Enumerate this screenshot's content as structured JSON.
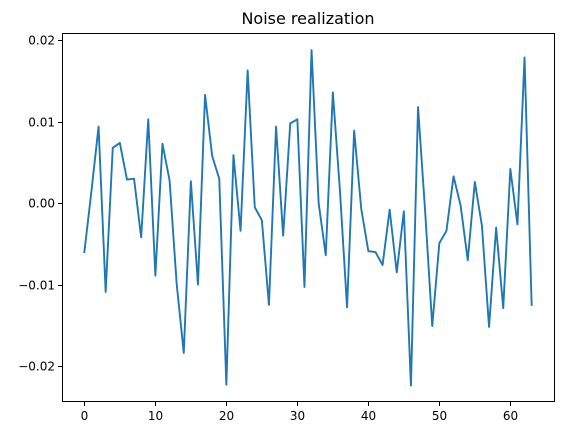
{
  "chart_data": {
    "type": "line",
    "title": "Noise realization",
    "xlabel": "",
    "ylabel": "",
    "xlim": [
      -3.15,
      66.15
    ],
    "ylim": [
      -0.0243,
      0.0209
    ],
    "xticks": [
      0,
      10,
      20,
      30,
      40,
      50,
      60
    ],
    "xtick_labels": [
      "0",
      "10",
      "20",
      "30",
      "40",
      "50",
      "60"
    ],
    "yticks": [
      -0.02,
      -0.01,
      0.0,
      0.01,
      0.02
    ],
    "ytick_labels": [
      "−0.02",
      "−0.01",
      "0.00",
      "0.01",
      "0.02"
    ],
    "grid": false,
    "legend": "none",
    "line_color": "#1f77b4",
    "x": [
      0,
      1,
      2,
      3,
      4,
      5,
      6,
      7,
      8,
      9,
      10,
      11,
      12,
      13,
      14,
      15,
      16,
      17,
      18,
      19,
      20,
      21,
      22,
      23,
      24,
      25,
      26,
      27,
      28,
      29,
      30,
      31,
      32,
      33,
      34,
      35,
      36,
      37,
      38,
      39,
      40,
      41,
      42,
      43,
      44,
      45,
      46,
      47,
      48,
      49,
      50,
      51,
      52,
      53,
      54,
      55,
      56,
      57,
      58,
      59,
      60,
      61,
      62,
      63
    ],
    "series": [
      {
        "values": [
          -0.006,
          0.0015,
          0.0094,
          -0.0109,
          0.0068,
          0.0074,
          0.0029,
          0.003,
          -0.0042,
          0.0103,
          -0.0089,
          0.0073,
          0.0028,
          -0.0099,
          -0.0184,
          0.0027,
          -0.01,
          0.0133,
          0.0058,
          0.003,
          -0.0223,
          0.0059,
          -0.0034,
          0.0163,
          -0.0005,
          -0.0021,
          -0.0125,
          0.0094,
          -0.004,
          0.0098,
          0.0103,
          -0.0103,
          0.0188,
          0.0,
          -0.0064,
          0.0136,
          0.0015,
          -0.0128,
          0.0089,
          -0.0007,
          -0.0059,
          -0.006,
          -0.0076,
          -0.0008,
          -0.0085,
          -0.001,
          -0.0224,
          0.0118,
          -0.001,
          -0.0151,
          -0.0049,
          -0.0034,
          0.0033,
          -0.0003,
          -0.007,
          0.0026,
          -0.0028,
          -0.0152,
          -0.003,
          -0.0129,
          0.0042,
          -0.0026,
          0.0179,
          -0.0125
        ]
      }
    ]
  }
}
